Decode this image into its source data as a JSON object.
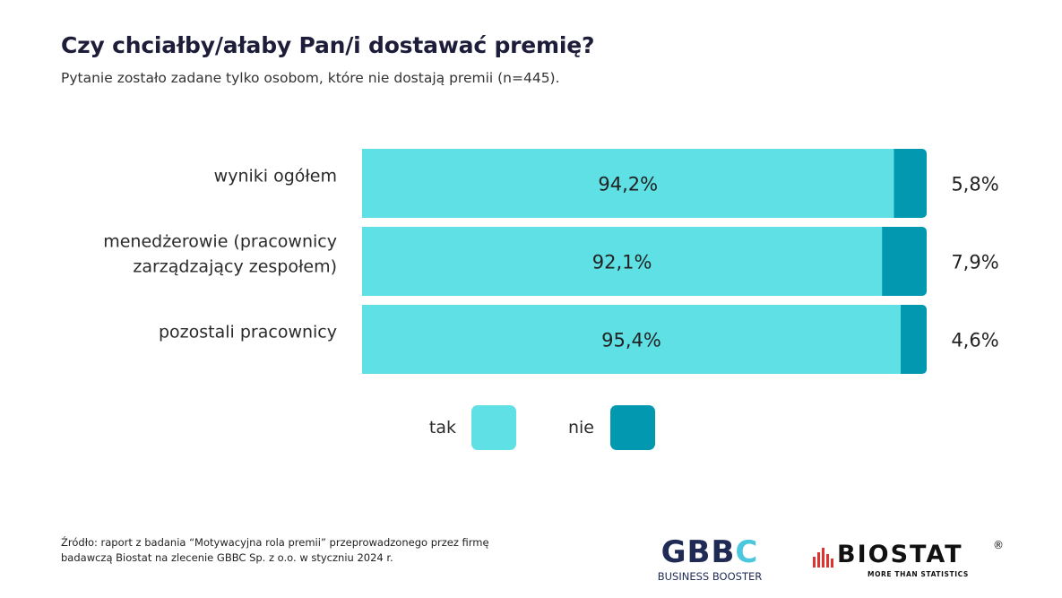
{
  "chart_data": {
    "type": "bar",
    "orientation": "horizontal",
    "stacked": true,
    "title": "Czy chciałby/ałaby Pan/i dostawać premię?",
    "subtitle": "Pytanie zostało zadane tylko osobom, które nie dostają premii (n=445).",
    "categories": [
      [
        "wyniki ogółem"
      ],
      [
        "menedżerowie (pracownicy",
        "zarządzający zespołem)"
      ],
      [
        "pozostali pracownicy"
      ]
    ],
    "series": [
      {
        "name": "tak",
        "color": "#5ee0e4",
        "values": [
          94.2,
          92.1,
          95.4
        ],
        "labels": [
          "94,2%",
          "92,1%",
          "95,4%"
        ]
      },
      {
        "name": "nie",
        "color": "#0299b0",
        "values": [
          5.8,
          7.9,
          4.6
        ],
        "labels": [
          "5,8%",
          "7,9%",
          "4,6%"
        ]
      }
    ],
    "xlim": [
      0,
      100
    ],
    "legend_position": "bottom",
    "grid": false
  },
  "source": {
    "line1": "Źródło: raport z badania “Motywacyjna rola premii” przeprowadzonego przez firmę",
    "line2": "badawczą Biostat na zlecenie GBBC Sp. z o.o. w styczniu 2024 r."
  },
  "logos": {
    "gbbc": {
      "text_a": "GBB",
      "text_b": "C",
      "subtitle": "BUSINESS BOOSTER",
      "accent": "#4bc7de"
    },
    "biostat": {
      "text": "BIOSTAT",
      "reg": "®",
      "tagline": "MORE THAN STATISTICS",
      "accent": "#e0322f"
    }
  }
}
